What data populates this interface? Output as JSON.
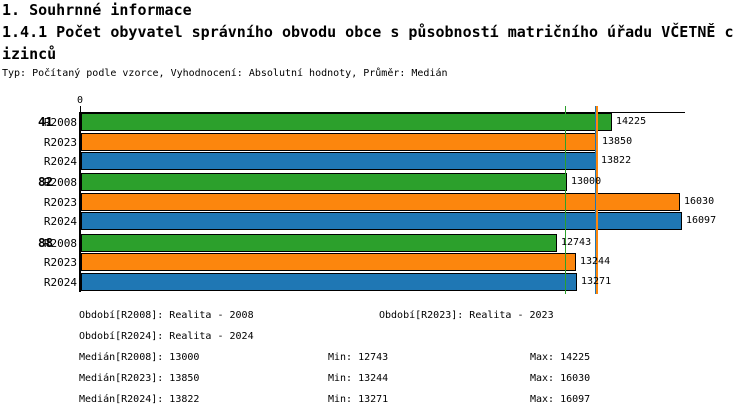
{
  "header": {
    "line1": "1. Souhrnné informace",
    "line2": "1.4.1 Počet obyvatel správního obvodu obce s působností matričního úřadu VČETNĚ c",
    "line3": "izinců",
    "meta": "Typ: Počítaný podle vzorce, Vyhodnocení: Absolutní hodnoty, Průměr: Medián"
  },
  "chart_data": {
    "type": "bar",
    "orientation": "horizontal",
    "origin_tick_label": "0",
    "xlim": [
      0,
      16250
    ],
    "grid": false,
    "series_labels": [
      "R2008",
      "R2023",
      "R2024"
    ],
    "series_colors": {
      "R2008": "#2CA02C",
      "R2023": "#FC860D",
      "R2024": "#1F77B4"
    },
    "groups": [
      {
        "label": "41",
        "bars": [
          {
            "series": "R2008",
            "value": 14225
          },
          {
            "series": "R2023",
            "value": 13850
          },
          {
            "series": "R2024",
            "value": 13822
          }
        ]
      },
      {
        "label": "82",
        "bars": [
          {
            "series": "R2008",
            "value": 13000
          },
          {
            "series": "R2023",
            "value": 16030
          },
          {
            "series": "R2024",
            "value": 16097
          }
        ]
      },
      {
        "label": "88",
        "bars": [
          {
            "series": "R2008",
            "value": 12743
          },
          {
            "series": "R2023",
            "value": 13244
          },
          {
            "series": "R2024",
            "value": 13271
          }
        ]
      }
    ],
    "median_lines": [
      {
        "series": "R2008",
        "value": 13000,
        "color": "#2CA02C"
      },
      {
        "series": "R2024",
        "value": 13822,
        "color": "#1F77B4"
      },
      {
        "series": "R2023",
        "value": 13850,
        "color": "#FC860D"
      }
    ]
  },
  "legend": {
    "period_rows": [
      {
        "left": "Období[R2008]: Realita - 2008",
        "right": "Období[R2023]: Realita - 2023"
      },
      {
        "left": "Období[R2024]: Realita - 2024",
        "right": ""
      }
    ],
    "stat_rows": [
      {
        "median": "Medián[R2008]: 13000",
        "min": "Min: 12743",
        "max": "Max: 14225"
      },
      {
        "median": "Medián[R2023]: 13850",
        "min": "Min: 13244",
        "max": "Max: 16030"
      },
      {
        "median": "Medián[R2024]: 13822",
        "min": "Min: 13271",
        "max": "Max: 16097"
      }
    ]
  }
}
